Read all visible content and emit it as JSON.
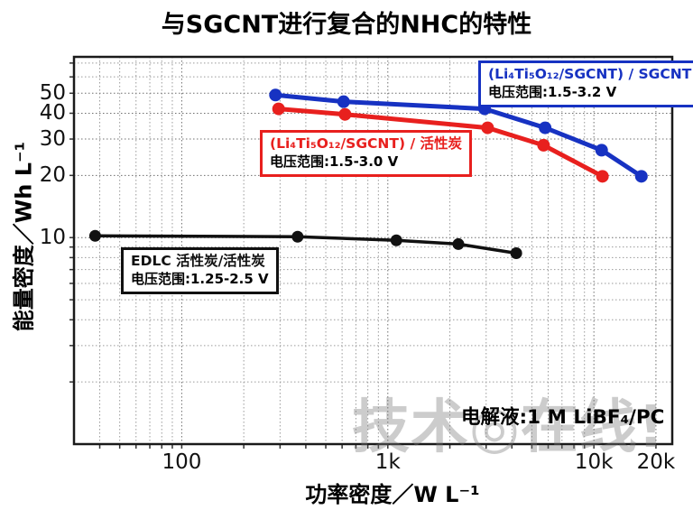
{
  "watermark": {
    "text": "技术◎在线!"
  },
  "chart_data": {
    "type": "line",
    "title": "与SGCNT进行复合的NHC的特性",
    "xlabel": "功率密度／W L⁻¹",
    "ylabel": "能量密度／Wh L⁻¹",
    "x_scale": "log",
    "y_scale": "log",
    "xlim": [
      30,
      24000
    ],
    "ylim": [
      1,
      75
    ],
    "grid": true,
    "legend_position": "inside-labeled-boxes",
    "x_ticks": [
      {
        "value": 100,
        "label": "100"
      },
      {
        "value": 1000,
        "label": "1k"
      },
      {
        "value": 10000,
        "label": "10k"
      },
      {
        "value": 20000,
        "label": "20k"
      }
    ],
    "y_ticks": [
      {
        "value": 50,
        "label": "50"
      },
      {
        "value": 40,
        "label": "40"
      },
      {
        "value": 30,
        "label": "30"
      },
      {
        "value": 20,
        "label": "20"
      },
      {
        "value": 10,
        "label": "10"
      }
    ],
    "x_gridlines": [
      40,
      50,
      60,
      70,
      80,
      90,
      100,
      200,
      300,
      400,
      500,
      600,
      700,
      800,
      900,
      1000,
      2000,
      3000,
      4000,
      5000,
      6000,
      7000,
      8000,
      9000,
      10000,
      20000
    ],
    "y_gridlines": [
      2,
      3,
      4,
      5,
      6,
      7,
      8,
      9,
      10,
      20,
      30,
      40,
      50,
      60,
      70
    ],
    "annotation": "电解液:1 M LiBF₄/PC",
    "series": [
      {
        "name": "(Li₄Ti₅O₁₂/SGCNT) / SGCNT",
        "voltage_range": "电压范围:1.5-3.2 V",
        "color": "#1732c2",
        "points": [
          [
            285,
            49
          ],
          [
            610,
            45.5
          ],
          [
            2950,
            42
          ],
          [
            5800,
            34
          ],
          [
            10900,
            26.5
          ],
          [
            17000,
            19.8
          ]
        ]
      },
      {
        "name": "(Li₄Ti₅O₁₂/SGCNT) / 活性炭",
        "voltage_range": "电压范围:1.5-3.0 V",
        "color": "#e8201e",
        "points": [
          [
            295,
            42
          ],
          [
            620,
            39.5
          ],
          [
            3050,
            34
          ],
          [
            5700,
            28
          ],
          [
            11000,
            19.8
          ]
        ]
      },
      {
        "name": "EDLC 活性炭/活性炭",
        "voltage_range": "电压范围:1.25-2.5 V",
        "color": "#111111",
        "points": [
          [
            38,
            10.2
          ],
          [
            365,
            10.1
          ],
          [
            1100,
            9.7
          ],
          [
            2200,
            9.3
          ],
          [
            4200,
            8.4
          ]
        ]
      }
    ]
  }
}
